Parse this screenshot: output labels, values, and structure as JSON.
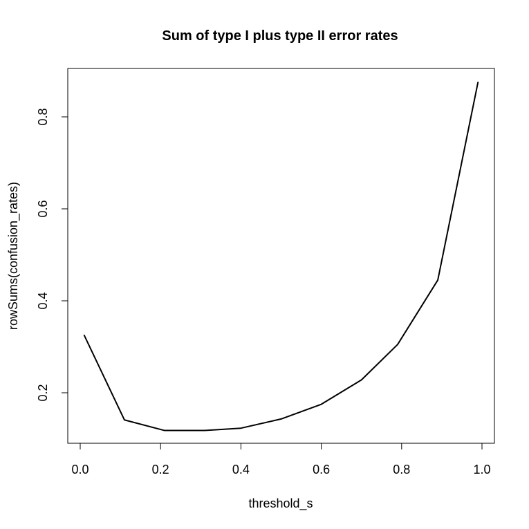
{
  "chart_data": {
    "type": "line",
    "title": "Sum of type I plus type II error rates",
    "xlabel": "threshold_s",
    "ylabel": "rowSums(confusion_rates)",
    "xlim": [
      0.0,
      1.0
    ],
    "ylim": [
      0.09,
      0.9
    ],
    "xticks": [
      0.0,
      0.2,
      0.4,
      0.6,
      0.8,
      1.0
    ],
    "xtick_labels": [
      "0.0",
      "0.2",
      "0.4",
      "0.6",
      "0.8",
      "1.0"
    ],
    "yticks": [
      0.2,
      0.4,
      0.6,
      0.8
    ],
    "ytick_labels": [
      "0.2",
      "0.4",
      "0.6",
      "0.8"
    ],
    "grid": false,
    "legend": "none",
    "line_color": "#000000",
    "series": [
      {
        "x": [
          0.01,
          0.11,
          0.21,
          0.31,
          0.4,
          0.5,
          0.6,
          0.7,
          0.79,
          0.89,
          0.99
        ],
        "values": [
          0.325,
          0.141,
          0.118,
          0.118,
          0.123,
          0.143,
          0.175,
          0.228,
          0.305,
          0.445,
          0.875
        ]
      }
    ]
  }
}
